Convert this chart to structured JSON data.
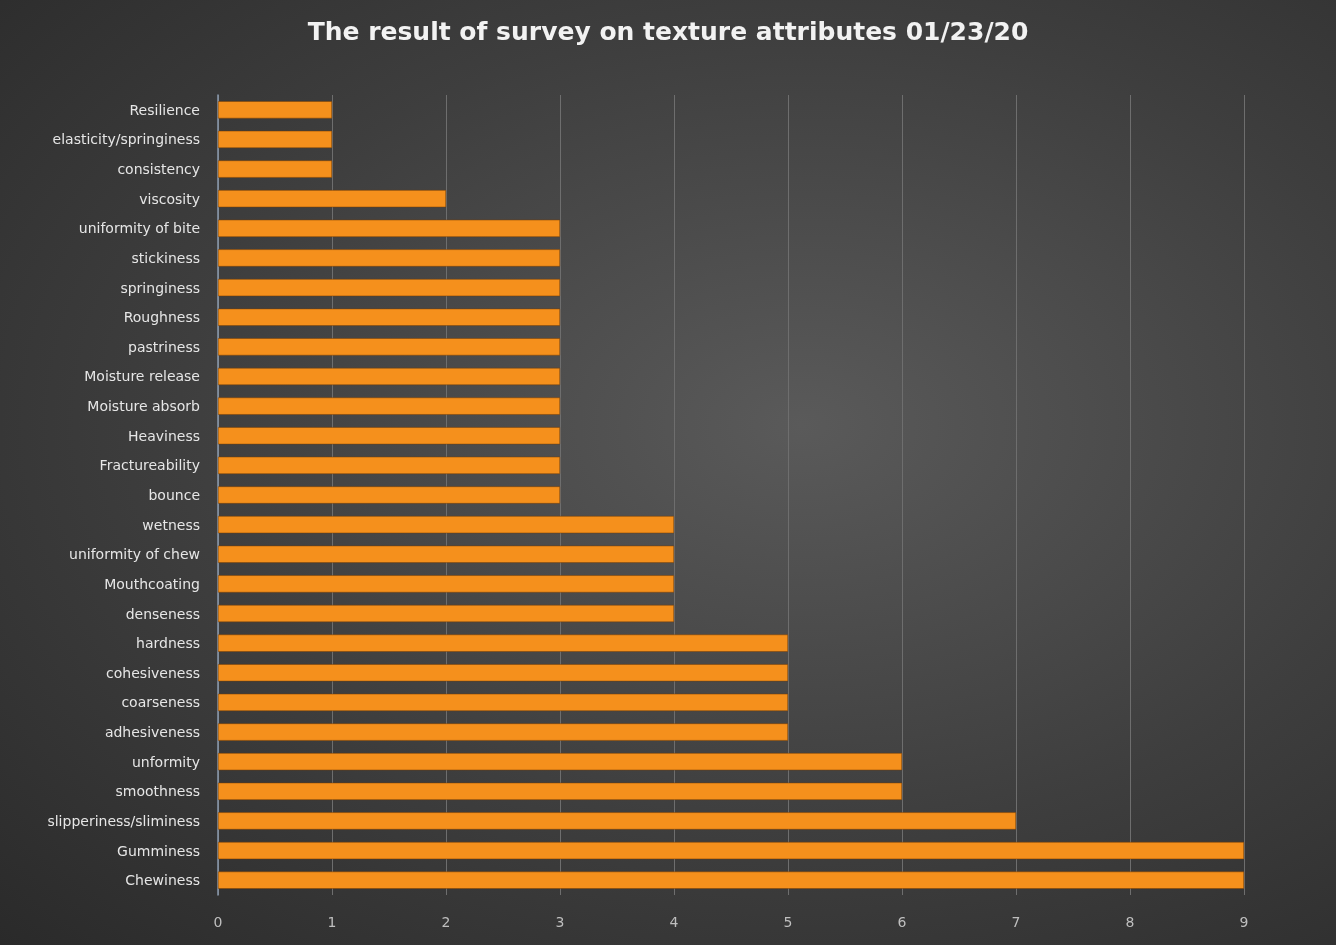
{
  "chart_data": {
    "type": "bar",
    "orientation": "horizontal",
    "title": "The result of survey on texture attributes 01/23/20",
    "categories": [
      "Resilience",
      "elasticity/springiness",
      "consistency",
      "viscosity",
      "uniformity of bite",
      "stickiness",
      "springiness",
      "Roughness",
      "pastriness",
      "Moisture release",
      "Moisture absorb",
      "Heaviness",
      "Fractureability",
      "bounce",
      "wetness",
      "uniformity of chew",
      "Mouthcoating",
      "denseness",
      "hardness",
      "cohesiveness",
      "coarseness",
      "adhesiveness",
      "unformity",
      "smoothness",
      "slipperiness/sliminess",
      "Gumminess",
      "Chewiness"
    ],
    "values": [
      1,
      1,
      1,
      2,
      3,
      3,
      3,
      3,
      3,
      3,
      3,
      3,
      3,
      3,
      4,
      4,
      4,
      4,
      5,
      5,
      5,
      5,
      6,
      6,
      7,
      9,
      9
    ],
    "color": "#f5901c",
    "xlim": [
      0,
      9
    ],
    "xticks": [
      0,
      1,
      2,
      3,
      4,
      5,
      6,
      7,
      8,
      9
    ],
    "grid": "x"
  }
}
